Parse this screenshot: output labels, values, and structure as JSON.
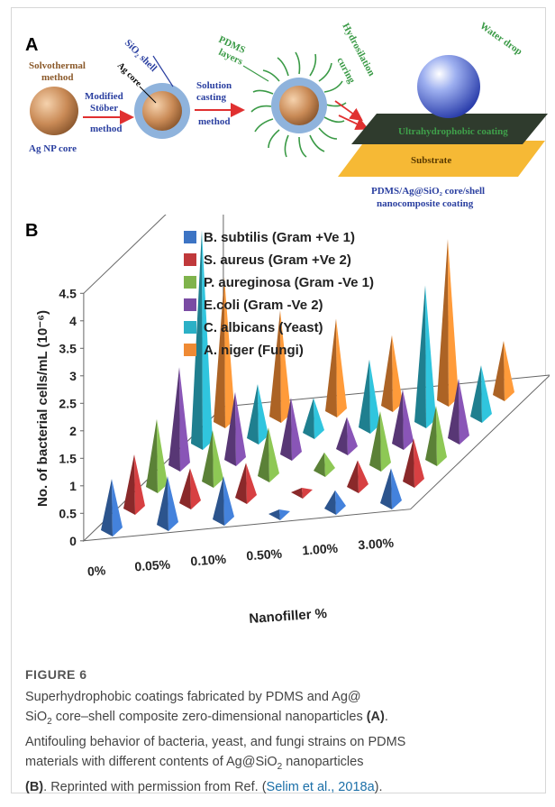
{
  "panel_a": {
    "label": "A",
    "solvothermal": [
      "Solvothermal",
      "method"
    ],
    "ag_np_core": "Ag NP core",
    "modified_stober": [
      "Modified",
      "Stöber",
      "method"
    ],
    "sio2_shell": "SiO₂ shell",
    "ag_core": "Ag core",
    "solution_casting": [
      "Solution",
      "casting",
      "method"
    ],
    "pdms_layers": [
      "PDMS",
      "layers"
    ],
    "hydrosilation": [
      "Hydrosilation",
      "curing"
    ],
    "water_drop": "Water drop",
    "ultrahydrophobic_coating": "Ultrahydrophobic coating",
    "substrate": "Substrate",
    "composite_line1": "PDMS/Ag@SiO₂ core/shell",
    "composite_line2": "nanocomposite coating",
    "colors": {
      "core": "#c98a56",
      "shell": "#8fb3dc",
      "arrow": "#e03030",
      "pdms": "#3a9a46",
      "coating": "#2f3b2d",
      "substrate": "#f6b935",
      "drop": "#3f57c9"
    }
  },
  "panel_b": {
    "label": "B",
    "chart_data": {
      "type": "bar",
      "style": "3d-pyramid",
      "categories": [
        "0%",
        "0.05%",
        "0.10%",
        "0.50%",
        "1.00%",
        "3.00%"
      ],
      "series": [
        {
          "name": "B. subtilis (Gram +Ve 1)",
          "color": "#3d74c4",
          "values": [
            0.9,
            0.85,
            0.75,
            0.05,
            0.3,
            0.6
          ]
        },
        {
          "name": "S. aureus (Gram +Ve 2)",
          "color": "#c0393b",
          "values": [
            0.95,
            0.6,
            0.6,
            0.05,
            0.45,
            0.75
          ]
        },
        {
          "name": "P. aureginosa (Gram -Ve 1)",
          "color": "#7fb34c",
          "values": [
            1.2,
            0.9,
            0.85,
            0.3,
            0.95,
            0.95
          ]
        },
        {
          "name": "E.coli (Gram -Ve 2)",
          "color": "#7a4ca3",
          "values": [
            1.75,
            1.2,
            1.0,
            0.55,
            0.95,
            1.05
          ]
        },
        {
          "name": "C. albicans (Yeast)",
          "color": "#2bb0c6",
          "values": [
            3.85,
            0.95,
            0.6,
            1.2,
            2.45,
            0.9
          ]
        },
        {
          "name": "A. niger (Fungi)",
          "color": "#ef8a34",
          "values": [
            2.6,
            1.9,
            1.65,
            1.25,
            2.9,
            0.95
          ]
        }
      ],
      "xlabel": "Nanofiller %",
      "ylabel": "No. of bacterial cells/mL (10⁻⁶)",
      "ylim": [
        0,
        4.5
      ],
      "yticks": [
        "0",
        "0.5",
        "1",
        "1.5",
        "2",
        "2.5",
        "3",
        "3.5",
        "4",
        "4.5"
      ],
      "legend_position": "top-right"
    }
  },
  "caption": {
    "label": "FIGURE 6",
    "text_1": "Superhydrophobic coatings fabricated by PDMS and Ag@",
    "text_2a": "SiO",
    "text_2sub": "2",
    "text_2b": " core–shell composite zero-dimensional nanoparticles ",
    "text_2c": "(A)",
    "text_2d": ".",
    "text_3": "Antifouling behavior of bacteria, yeast, and fungi strains on PDMS",
    "text_4a": "materials with different contents of Ag@SiO",
    "text_4sub": "2",
    "text_4b": " nanoparticles",
    "text_5a": "(B)",
    "text_5b": ". Reprinted with permission from Ref. (",
    "text_5c": "Selim et al., 2018a",
    "text_5d": ")."
  }
}
